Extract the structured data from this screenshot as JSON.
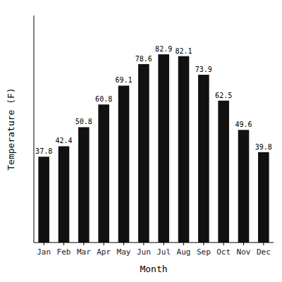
{
  "chart_data": {
    "type": "bar",
    "categories": [
      "Jan",
      "Feb",
      "Mar",
      "Apr",
      "May",
      "Jun",
      "Jul",
      "Aug",
      "Sep",
      "Oct",
      "Nov",
      "Dec"
    ],
    "values": [
      37.8,
      42.4,
      50.8,
      60.8,
      69.1,
      78.6,
      82.9,
      82.1,
      73.9,
      62.5,
      49.6,
      39.8
    ],
    "color": "#111111",
    "xlabel": "Month",
    "ylabel": "Temperature (F)",
    "ylim": [
      0,
      100
    ],
    "data_labels": true,
    "tick_labels": "x",
    "grid": false
  }
}
